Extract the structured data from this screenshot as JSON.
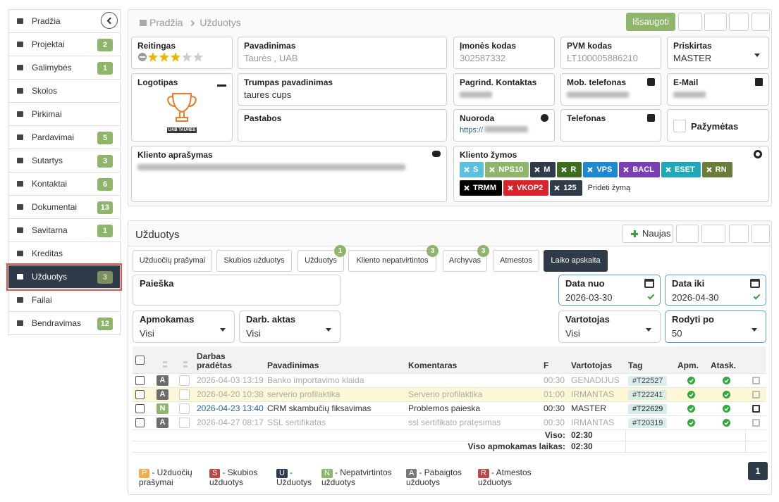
{
  "sidebar": {
    "items": [
      {
        "label": "Pradžia"
      },
      {
        "label": "Projektai",
        "badge": 2
      },
      {
        "label": "Galimybės",
        "badge": 1
      },
      {
        "label": "Skolos"
      },
      {
        "label": "Pirkimai"
      },
      {
        "label": "Pardavimai",
        "badge": 5
      },
      {
        "label": "Sutartys",
        "badge": 3
      },
      {
        "label": "Kontaktai",
        "badge": 6
      },
      {
        "label": "Dokumentai",
        "badge": 13
      },
      {
        "label": "Savitarna",
        "badge": 1
      },
      {
        "label": "Kreditas"
      },
      {
        "label": "Užduotys",
        "badge": 3
      },
      {
        "label": "Failai"
      },
      {
        "label": "Bendravimas",
        "badge": 12
      }
    ]
  },
  "header": {
    "breadcrumb": [
      "Pradžia",
      "Užduotys"
    ],
    "save": "Išsaugoti"
  },
  "client": {
    "rating_label": "Reitingas",
    "rating": 3,
    "rating_max": 5,
    "name": {
      "label": "Pavadinimas",
      "value": "Taurės , UAB"
    },
    "code": {
      "label": "Įmonės kodas",
      "value": "302587332"
    },
    "vat": {
      "label": "PVM kodas",
      "value": "LT100005886210"
    },
    "assigned": {
      "label": "Priskirtas",
      "value": "MASTER"
    },
    "logo": {
      "label": "Logotipas",
      "caption": "UAB TAURĖS"
    },
    "short_name": {
      "label": "Trumpas pavadinimas",
      "value": "taures cups"
    },
    "contact": {
      "label": "Pagrind. Kontaktas"
    },
    "mobile": {
      "label": "Mob. telefonas"
    },
    "email": {
      "label": "E-Mail"
    },
    "notes": {
      "label": "Pastabos"
    },
    "link": {
      "label": "Nuoroda",
      "value": "https://"
    },
    "phone": {
      "label": "Telefonas"
    },
    "marked": {
      "label": "Pažymėtas"
    },
    "description": {
      "label": "Kliento aprašymas"
    },
    "tags_label": "Kliento žymos",
    "tags": [
      {
        "name": "S",
        "color": "#5bc0de"
      },
      {
        "name": "NPS10",
        "color": "#8fb46b"
      },
      {
        "name": "M",
        "color": "#2f3b48"
      },
      {
        "name": "R",
        "color": "#3d6b1f"
      },
      {
        "name": "VPS",
        "color": "#1e88d0"
      },
      {
        "name": "BACL",
        "color": "#7b3fb5"
      },
      {
        "name": "ESET",
        "color": "#20a8b8"
      },
      {
        "name": "RN",
        "color": "#6b7b3a"
      },
      {
        "name": "TRMM",
        "color": "#000000"
      },
      {
        "name": "VKOP2",
        "color": "#d9222a"
      },
      {
        "name": "125",
        "color": "#2f3b48"
      }
    ],
    "add_tag": "Pridėti žymą"
  },
  "tasks": {
    "title": "Užduotys",
    "new": "Naujas",
    "tabs": [
      {
        "label": "Užduočių prašymai"
      },
      {
        "label": "Skubios užduotys"
      },
      {
        "label": "Užduotys",
        "badge": 1
      },
      {
        "label": "Kliento nepatvirtintos",
        "badge": 3
      },
      {
        "label": "Archyvas",
        "badge": 3
      },
      {
        "label": "Atmestos"
      },
      {
        "label": "Laiko apskaita"
      }
    ],
    "filters": {
      "search": {
        "label": "Paieška"
      },
      "date_from": {
        "label": "Data nuo",
        "value": "2026-03-30"
      },
      "date_to": {
        "label": "Data iki",
        "value": "2026-04-30"
      },
      "paid": {
        "label": "Apmokamas",
        "value": "Visi"
      },
      "act": {
        "label": "Darb. aktas",
        "value": "Visi"
      },
      "user": {
        "label": "Vartotojas",
        "value": "Visi"
      },
      "per_page": {
        "label": "Rodyti po",
        "value": 50
      }
    },
    "table": {
      "columns": [
        "Darbas pradėtas",
        "Pavadinimas",
        "Komentaras",
        "F",
        "Vartotojas",
        "Tag",
        "Apm.",
        "Atask."
      ],
      "rows": [
        {
          "status": "A",
          "date": "2026-04-03 13:19",
          "name": "Banko importavimo klaida",
          "comment": "",
          "f": "00:30",
          "user": "GENADIJUS",
          "tag": "#T22527"
        },
        {
          "status": "A",
          "date": "2026-04-20 10:38",
          "name": "serverio profilaktika",
          "comment": "Serverio profilaktika",
          "f": "01:00",
          "user": "IRMANTAS",
          "tag": "#T22241"
        },
        {
          "status": "N",
          "date": "2026-04-23 13:40",
          "name": "CRM skambučių fiksavimas",
          "comment": "Problemos paieska",
          "f": "00:30",
          "user": "MASTER",
          "tag": "#T22629"
        },
        {
          "status": "A",
          "date": "2026-04-27 08:17",
          "name": "SSL sertifikatas",
          "comment": "ssl sertifikato pratęsimas",
          "f": "00:30",
          "user": "IRMANTAS",
          "tag": "#T20319"
        }
      ],
      "totals": [
        {
          "label": "Viso:",
          "value": "02:30"
        },
        {
          "label": "Viso apmokamas laikas:",
          "value": "02:30"
        }
      ]
    },
    "legend": [
      {
        "letter": "P",
        "text": "- Užduočių prašymai",
        "color": "#f0ad4e"
      },
      {
        "letter": "S",
        "text": "- Skubios užduotys",
        "color": "#b94a48"
      },
      {
        "letter": "U",
        "text": "- Užduotys",
        "color": "#2f3b48"
      },
      {
        "letter": "N",
        "text": "- Nepatvirtintos užduotys",
        "color": "#8fb46b"
      },
      {
        "letter": "A",
        "text": "- Pabaigtos užduotys",
        "color": "#777777"
      },
      {
        "letter": "R",
        "text": "- Atmestos užduotys",
        "color": "#b94a48"
      }
    ],
    "page": 1
  }
}
